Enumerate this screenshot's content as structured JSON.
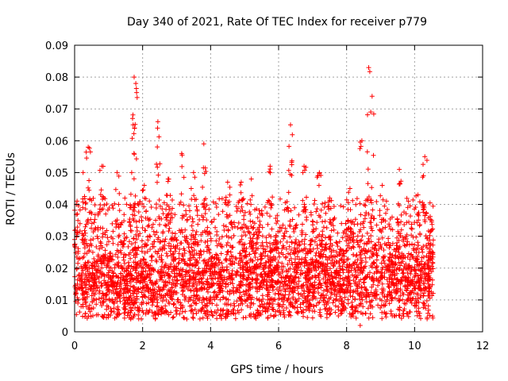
{
  "chart_data": {
    "type": "scatter",
    "title": "Day 340 of 2021, Rate Of TEC Index for receiver p779",
    "xlabel": "GPS time / hours",
    "ylabel": "ROTI / TECUs",
    "xlim": [
      0,
      12
    ],
    "ylim": [
      0,
      0.09
    ],
    "x_ticks": [
      "0",
      "2",
      "4",
      "6",
      "8",
      "10",
      "12"
    ],
    "y_ticks": [
      "0",
      "0.01",
      "0.02",
      "0.03",
      "0.04",
      "0.05",
      "0.06",
      "0.07",
      "0.08",
      "0.09"
    ],
    "grid": true,
    "marker": "+",
    "series": [
      {
        "name": "ROTI",
        "color": "#ff0000",
        "x_range": [
          0.0,
          10.55
        ],
        "point_count": 3800,
        "typical_band": [
          0.008,
          0.025
        ],
        "peaks": [
          {
            "x": 0.05,
            "y": 0.04
          },
          {
            "x": 0.25,
            "y": 0.05
          },
          {
            "x": 0.4,
            "y": 0.058
          },
          {
            "x": 0.8,
            "y": 0.052
          },
          {
            "x": 1.25,
            "y": 0.05
          },
          {
            "x": 1.75,
            "y": 0.08
          },
          {
            "x": 1.8,
            "y": 0.078
          },
          {
            "x": 1.72,
            "y": 0.065
          },
          {
            "x": 2.05,
            "y": 0.046
          },
          {
            "x": 2.45,
            "y": 0.066
          },
          {
            "x": 2.75,
            "y": 0.048
          },
          {
            "x": 3.15,
            "y": 0.056
          },
          {
            "x": 3.5,
            "y": 0.05
          },
          {
            "x": 3.8,
            "y": 0.059
          },
          {
            "x": 4.5,
            "y": 0.047
          },
          {
            "x": 4.9,
            "y": 0.047
          },
          {
            "x": 5.2,
            "y": 0.048
          },
          {
            "x": 5.75,
            "y": 0.052
          },
          {
            "x": 6.35,
            "y": 0.065
          },
          {
            "x": 6.75,
            "y": 0.052
          },
          {
            "x": 7.2,
            "y": 0.05
          },
          {
            "x": 7.5,
            "y": 0.042
          },
          {
            "x": 8.1,
            "y": 0.045
          },
          {
            "x": 8.45,
            "y": 0.06
          },
          {
            "x": 8.65,
            "y": 0.083
          },
          {
            "x": 8.75,
            "y": 0.074
          },
          {
            "x": 9.05,
            "y": 0.046
          },
          {
            "x": 9.55,
            "y": 0.051
          },
          {
            "x": 10.1,
            "y": 0.043
          },
          {
            "x": 10.3,
            "y": 0.055
          },
          {
            "x": 10.5,
            "y": 0.035
          }
        ],
        "minima": [
          {
            "x": 1.65,
            "y": 0.004
          },
          {
            "x": 3.3,
            "y": 0.004
          },
          {
            "x": 8.4,
            "y": 0.002
          },
          {
            "x": 9.4,
            "y": 0.005
          }
        ]
      }
    ]
  }
}
